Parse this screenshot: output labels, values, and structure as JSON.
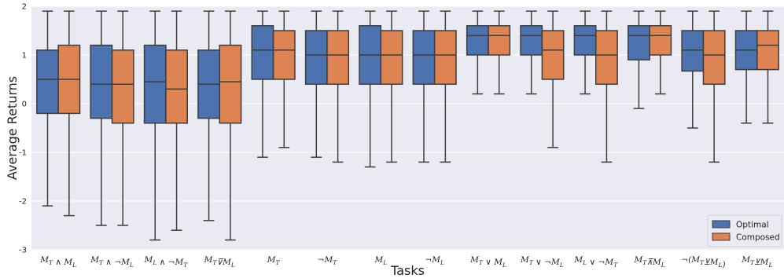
{
  "chart_data": {
    "type": "boxplot",
    "xlabel": "Tasks",
    "ylabel": "Average Returns",
    "ylim": [
      -3,
      2
    ],
    "yticks": [
      -3,
      -2,
      -1,
      0,
      1,
      2
    ],
    "grid": true,
    "legend_position": "bottom-right",
    "categories": [
      "M_T ∧ M_L",
      "M_T ∧ ¬M_L",
      "M_L ∧ ¬M_T",
      "M_T ⊽ M_L",
      "M_T",
      "¬M_T",
      "M_L",
      "¬M_L",
      "M_T ∨ M_L",
      "M_T ∨ ¬M_L",
      "M_L ∨ ¬M_T",
      "M_T ⊼ M_L",
      "¬(M_T ⊻ M_L)",
      "M_T ⊻ M_L"
    ],
    "categories_display": [
      "M_T ∧ M_L",
      "M_T ∧ ¬M_L",
      "M_L ∧ ¬M_T",
      "M_T⊽M_L",
      "M_T",
      "¬M_T",
      "M_L",
      "¬M_L",
      "M_T ∨ M_L",
      "M_T ∨ ¬M_L",
      "M_L ∨ ¬M_T",
      "M_T⊼M_L",
      "¬(M_T⊻M_L)",
      "M_T⊻M_L"
    ],
    "series": [
      {
        "name": "Optimal",
        "color": "#4c72b0",
        "boxes": [
          {
            "min": -2.1,
            "q1": -0.2,
            "median": 0.5,
            "q3": 1.1,
            "max": 1.9
          },
          {
            "min": -2.5,
            "q1": -0.3,
            "median": 0.4,
            "q3": 1.2,
            "max": 1.9
          },
          {
            "min": -2.8,
            "q1": -0.4,
            "median": 0.45,
            "q3": 1.2,
            "max": 1.9
          },
          {
            "min": -2.4,
            "q1": -0.3,
            "median": 0.4,
            "q3": 1.1,
            "max": 1.9
          },
          {
            "min": -1.1,
            "q1": 0.5,
            "median": 1.1,
            "q3": 1.6,
            "max": 1.9
          },
          {
            "min": -1.1,
            "q1": 0.4,
            "median": 1.0,
            "q3": 1.5,
            "max": 1.9
          },
          {
            "min": -1.3,
            "q1": 0.4,
            "median": 1.0,
            "q3": 1.6,
            "max": 1.9
          },
          {
            "min": -1.2,
            "q1": 0.4,
            "median": 1.0,
            "q3": 1.5,
            "max": 1.9
          },
          {
            "min": 0.2,
            "q1": 1.0,
            "median": 1.4,
            "q3": 1.6,
            "max": 1.9
          },
          {
            "min": 0.2,
            "q1": 1.0,
            "median": 1.4,
            "q3": 1.6,
            "max": 1.9
          },
          {
            "min": 0.2,
            "q1": 1.0,
            "median": 1.4,
            "q3": 1.6,
            "max": 1.9
          },
          {
            "min": -0.1,
            "q1": 0.9,
            "median": 1.4,
            "q3": 1.6,
            "max": 1.9
          },
          {
            "min": -0.5,
            "q1": 0.67,
            "median": 1.1,
            "q3": 1.5,
            "max": 1.9
          },
          {
            "min": -0.4,
            "q1": 0.7,
            "median": 1.1,
            "q3": 1.5,
            "max": 1.9
          }
        ]
      },
      {
        "name": "Composed",
        "color": "#dd8452",
        "boxes": [
          {
            "min": -2.3,
            "q1": -0.2,
            "median": 0.5,
            "q3": 1.2,
            "max": 1.9
          },
          {
            "min": -2.5,
            "q1": -0.4,
            "median": 0.4,
            "q3": 1.1,
            "max": 1.9
          },
          {
            "min": -2.6,
            "q1": -0.4,
            "median": 0.3,
            "q3": 1.1,
            "max": 1.9
          },
          {
            "min": -2.8,
            "q1": -0.4,
            "median": 0.45,
            "q3": 1.2,
            "max": 1.9
          },
          {
            "min": -0.9,
            "q1": 0.5,
            "median": 1.1,
            "q3": 1.5,
            "max": 1.9
          },
          {
            "min": -1.2,
            "q1": 0.4,
            "median": 1.0,
            "q3": 1.5,
            "max": 1.9
          },
          {
            "min": -1.2,
            "q1": 0.4,
            "median": 1.0,
            "q3": 1.5,
            "max": 1.9
          },
          {
            "min": -1.2,
            "q1": 0.4,
            "median": 1.0,
            "q3": 1.5,
            "max": 1.9
          },
          {
            "min": 0.2,
            "q1": 1.0,
            "median": 1.4,
            "q3": 1.6,
            "max": 1.9
          },
          {
            "min": -0.9,
            "q1": 0.5,
            "median": 1.1,
            "q3": 1.5,
            "max": 1.9
          },
          {
            "min": -1.2,
            "q1": 0.4,
            "median": 1.0,
            "q3": 1.5,
            "max": 1.9
          },
          {
            "min": 0.2,
            "q1": 1.0,
            "median": 1.4,
            "q3": 1.6,
            "max": 1.9
          },
          {
            "min": -1.2,
            "q1": 0.4,
            "median": 1.0,
            "q3": 1.5,
            "max": 1.9
          },
          {
            "min": -0.4,
            "q1": 0.7,
            "median": 1.2,
            "q3": 1.5,
            "max": 1.9
          }
        ]
      }
    ],
    "style": {
      "background": "#eaeaf2",
      "grid_color": "#ffffff",
      "line_color": "#3d3d3d"
    }
  }
}
